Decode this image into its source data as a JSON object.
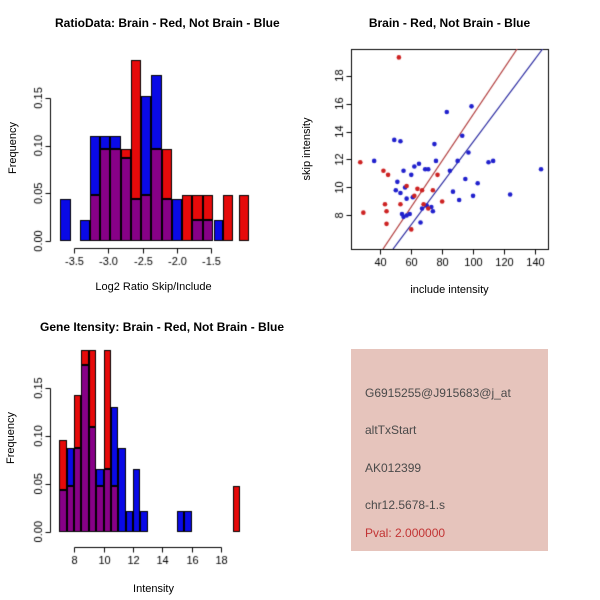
{
  "colors": {
    "hist_blue": "#0A0AE6",
    "hist_red": "#E60A0A",
    "hist_overlap": "#870087",
    "bar_border": "#000000",
    "scatter_blue": "#2020CD",
    "scatter_red": "#CD2222",
    "fit_line_red": "#B03A3A",
    "fit_line_blue": "#24249E",
    "axis": "#000000",
    "info_bg": "#E6C4BC",
    "info_text": "#4A4A4A",
    "info_pval_color": "#C23434"
  },
  "panels": {
    "ratio_hist": {
      "title": "RatioData: Brain - Red, Not Brain - Blue",
      "xlabel": "Log2 Ratio Skip/Include",
      "ylabel": "Frequency"
    },
    "scatter": {
      "title": "Brain - Red, Not Brain - Blue",
      "xlabel": "include intensity",
      "ylabel": "skip intensity"
    },
    "gene_hist": {
      "title": "Gene Itensity: Brain - Red, Not Brain - Blue",
      "xlabel": "Intensity",
      "ylabel": "Frequency"
    },
    "info": {
      "probe_id": "G6915255@J915683@j_at",
      "event_type": "altTxStart",
      "accession": "AK012399",
      "locus": "chr12.5678-1.s",
      "pval": "Pval: 2.000000"
    }
  },
  "chart_data": [
    {
      "type": "bar",
      "variant": "overlaid-histogram",
      "title": "RatioData: Brain - Red, Not Brain - Blue",
      "xlabel": "Log2 Ratio Skip/Include",
      "ylabel": "Frequency",
      "legend": "Brain - Red, Not Brain - Blue",
      "xlim": [
        -3.78,
        -0.9
      ],
      "ylim": [
        0,
        0.195
      ],
      "xticks": [
        -3.5,
        -3.0,
        -2.5,
        -2.0,
        -1.5
      ],
      "xtick_labels": [
        "-3.5",
        "-3.0",
        "-2.5",
        "-2.0",
        "-1.5"
      ],
      "yticks": [
        0,
        0.05,
        0.1,
        0.15
      ],
      "ytick_labels": [
        "0.00",
        "0.05",
        "0.10",
        "0.15"
      ],
      "grid": false,
      "bars": [
        {
          "x0": -3.7,
          "x1": -3.55,
          "blue": 0.044,
          "red": 0
        },
        {
          "x0": -3.42,
          "x1": -3.27,
          "blue": 0.022,
          "red": 0
        },
        {
          "x0": -3.27,
          "x1": -3.12,
          "blue": 0.11,
          "red": 0.048
        },
        {
          "x0": -3.12,
          "x1": -2.97,
          "blue": 0.11,
          "red": 0.096
        },
        {
          "x0": -2.97,
          "x1": -2.82,
          "blue": 0.11,
          "red": 0.096
        },
        {
          "x0": -2.82,
          "x1": -2.67,
          "blue": 0.087,
          "red": 0.096
        },
        {
          "x0": -2.67,
          "x1": -2.52,
          "blue": 0.044,
          "red": 0.19
        },
        {
          "x0": -2.52,
          "x1": -2.37,
          "blue": 0.152,
          "red": 0.048
        },
        {
          "x0": -2.37,
          "x1": -2.22,
          "blue": 0.174,
          "red": 0.096
        },
        {
          "x0": -2.22,
          "x1": -2.07,
          "blue": 0.044,
          "red": 0.096
        },
        {
          "x0": -2.07,
          "x1": -1.92,
          "blue": 0.044,
          "red": 0
        },
        {
          "x0": -1.92,
          "x1": -1.77,
          "blue": 0,
          "red": 0.048
        },
        {
          "x0": -1.77,
          "x1": -1.62,
          "blue": 0.022,
          "red": 0.048
        },
        {
          "x0": -1.62,
          "x1": -1.47,
          "blue": 0.022,
          "red": 0.048
        },
        {
          "x0": -1.46,
          "x1": -1.32,
          "blue": 0.022,
          "red": 0
        },
        {
          "x0": -1.32,
          "x1": -1.18,
          "blue": 0,
          "red": 0.048
        },
        {
          "x0": -1.09,
          "x1": -0.95,
          "blue": 0,
          "red": 0.048
        }
      ]
    },
    {
      "type": "scatter",
      "title": "Brain - Red, Not Brain - Blue",
      "xlabel": "include intensity",
      "ylabel": "skip intensity",
      "xlim": [
        21,
        148.5
      ],
      "ylim": [
        5.6,
        19.9
      ],
      "xticks": [
        40,
        60,
        80,
        100,
        120,
        140
      ],
      "xtick_labels": [
        "40",
        "60",
        "80",
        "100",
        "120",
        "140"
      ],
      "yticks": [
        8,
        10,
        12,
        14,
        16,
        18
      ],
      "ytick_labels": [
        "8",
        "10",
        "12",
        "14",
        "16",
        "18"
      ],
      "grid": false,
      "series": [
        {
          "name": "Not Brain",
          "color": "blue",
          "points": [
            [
              36,
              11.9
            ],
            [
              49,
              13.4
            ],
            [
              53,
              13.3
            ],
            [
              51,
              10.4
            ],
            [
              55,
              11.2
            ],
            [
              50,
              9.8
            ],
            [
              53,
              9.6
            ],
            [
              56,
              10.0
            ],
            [
              57,
              9.2
            ],
            [
              54,
              8.1
            ],
            [
              55,
              7.9
            ],
            [
              57,
              8.0
            ],
            [
              59,
              8.1
            ],
            [
              60,
              10.9
            ],
            [
              62,
              11.5
            ],
            [
              61,
              9.3
            ],
            [
              65,
              11.7
            ],
            [
              66,
              7.5
            ],
            [
              67,
              8.5
            ],
            [
              69,
              11.3
            ],
            [
              71,
              11.3
            ],
            [
              70,
              8.7
            ],
            [
              73,
              8.6
            ],
            [
              74,
              8.3
            ],
            [
              75,
              13.1
            ],
            [
              76,
              11.9
            ],
            [
              83,
              15.4
            ],
            [
              85,
              11.2
            ],
            [
              87,
              9.7
            ],
            [
              90,
              11.9
            ],
            [
              91,
              9.1
            ],
            [
              93,
              13.7
            ],
            [
              95,
              10.6
            ],
            [
              97,
              12.5
            ],
            [
              99,
              15.8
            ],
            [
              100,
              9.4
            ],
            [
              103,
              10.3
            ],
            [
              110,
              11.8
            ],
            [
              113,
              11.9
            ],
            [
              124,
              9.5
            ],
            [
              144,
              11.3
            ]
          ]
        },
        {
          "name": "Brain",
          "color": "red",
          "points": [
            [
              27,
              11.8
            ],
            [
              29,
              8.2
            ],
            [
              42,
              11.2
            ],
            [
              43,
              8.8
            ],
            [
              44,
              8.3
            ],
            [
              44,
              7.4
            ],
            [
              45,
              10.9
            ],
            [
              52,
              19.3
            ],
            [
              53,
              8.8
            ],
            [
              57,
              10.1
            ],
            [
              60,
              7.0
            ],
            [
              62,
              9.4
            ],
            [
              64,
              9.9
            ],
            [
              67,
              9.8
            ],
            [
              68,
              8.8
            ],
            [
              71,
              8.5
            ],
            [
              74,
              9.8
            ],
            [
              77,
              10.9
            ],
            [
              80,
              9.0
            ]
          ]
        }
      ],
      "lines": [
        {
          "name": "brain-fit",
          "color": "red",
          "x0": 41.7,
          "y0": 5.6,
          "x1": 128.5,
          "y1": 19.9
        },
        {
          "name": "notbrain-fit",
          "color": "blue",
          "x0": 48.2,
          "y0": 5.6,
          "x1": 145.0,
          "y1": 19.9
        }
      ]
    },
    {
      "type": "bar",
      "variant": "overlaid-histogram",
      "title": "Gene Itensity: Brain - Red, Not Brain - Blue",
      "xlabel": "Intensity",
      "ylabel": "Frequency",
      "legend": "Brain - Red, Not Brain - Blue",
      "xlim": [
        6.7,
        20.1
      ],
      "ylim": [
        0,
        0.195
      ],
      "xticks": [
        8,
        10,
        12,
        14,
        16,
        18
      ],
      "xtick_labels": [
        "8",
        "10",
        "12",
        "14",
        "16",
        "18"
      ],
      "yticks": [
        0,
        0.05,
        0.1,
        0.15
      ],
      "ytick_labels": [
        "0.00",
        "0.05",
        "0.10",
        "0.15"
      ],
      "grid": false,
      "bars": [
        {
          "x0": 7.0,
          "x1": 7.5,
          "blue": 0.044,
          "red": 0.096
        },
        {
          "x0": 7.5,
          "x1": 8.0,
          "blue": 0.087,
          "red": 0.048
        },
        {
          "x0": 8.0,
          "x1": 8.5,
          "blue": 0.087,
          "red": 0.143
        },
        {
          "x0": 8.5,
          "x1": 9.0,
          "blue": 0.174,
          "red": 0.19
        },
        {
          "x0": 9.0,
          "x1": 9.5,
          "blue": 0.109,
          "red": 0.19
        },
        {
          "x0": 9.5,
          "x1": 10.0,
          "blue": 0.065,
          "red": 0.048
        },
        {
          "x0": 10.0,
          "x1": 10.5,
          "blue": 0.065,
          "red": 0.19
        },
        {
          "x0": 10.5,
          "x1": 11.0,
          "blue": 0.13,
          "red": 0.048
        },
        {
          "x0": 11.0,
          "x1": 11.5,
          "blue": 0.087,
          "red": 0
        },
        {
          "x0": 11.5,
          "x1": 12.0,
          "blue": 0.022,
          "red": 0
        },
        {
          "x0": 12.0,
          "x1": 12.5,
          "blue": 0.065,
          "red": 0
        },
        {
          "x0": 12.5,
          "x1": 13.0,
          "blue": 0.022,
          "red": 0
        },
        {
          "x0": 15.0,
          "x1": 15.5,
          "blue": 0.022,
          "red": 0
        },
        {
          "x0": 15.5,
          "x1": 16.0,
          "blue": 0.022,
          "red": 0
        },
        {
          "x0": 18.8,
          "x1": 19.3,
          "blue": 0,
          "red": 0.048
        }
      ]
    }
  ]
}
